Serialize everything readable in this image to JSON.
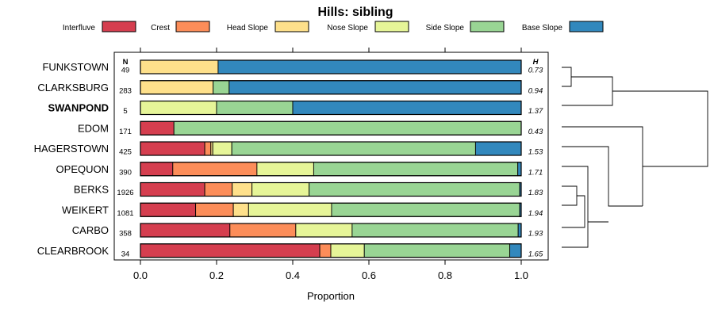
{
  "chart_data": {
    "type": "bar",
    "orientation": "horizontal",
    "stacked": true,
    "title": "Hills: sibling",
    "xlabel": "Proportion",
    "ylabel": "",
    "xlim": [
      0,
      1
    ],
    "xticks": [
      "0.0",
      "0.2",
      "0.4",
      "0.6",
      "0.8",
      "1.0"
    ],
    "xtick_values": [
      0,
      0.2,
      0.4,
      0.6,
      0.8,
      1.0
    ],
    "legend_position": "top",
    "n_header": "N",
    "h_header": "H",
    "legend": [
      {
        "name": "Interfluve",
        "color": "#d53e4f"
      },
      {
        "name": "Crest",
        "color": "#fc8d59"
      },
      {
        "name": "Head Slope",
        "color": "#fee08b"
      },
      {
        "name": "Nose Slope",
        "color": "#e6f598"
      },
      {
        "name": "Side Slope",
        "color": "#99d594"
      },
      {
        "name": "Base Slope",
        "color": "#3288bd"
      }
    ],
    "categories": [
      "FUNKSTOWN",
      "CLARKSBURG",
      "SWANPOND",
      "EDOM",
      "HAGERSTOWN",
      "OPEQUON",
      "BERKS",
      "WEIKERT",
      "CARBO",
      "CLEARBROOK"
    ],
    "highlight": "SWANPOND",
    "rows": [
      {
        "name": "FUNKSTOWN",
        "n": "49",
        "h": "0.73",
        "values": [
          0,
          0,
          0.204,
          0,
          0,
          0.796
        ]
      },
      {
        "name": "CLARKSBURG",
        "n": "283",
        "h": "0.94",
        "values": [
          0,
          0,
          0.191,
          0,
          0.042,
          0.767
        ]
      },
      {
        "name": "SWANPOND",
        "n": "5",
        "h": "1.37",
        "values": [
          0,
          0,
          0,
          0.2,
          0.2,
          0.6
        ]
      },
      {
        "name": "EDOM",
        "n": "171",
        "h": "0.43",
        "values": [
          0.088,
          0,
          0,
          0,
          0.912,
          0
        ]
      },
      {
        "name": "HAGERSTOWN",
        "n": "425",
        "h": "1.53",
        "values": [
          0.169,
          0.016,
          0.005,
          0.05,
          0.64,
          0.12
        ]
      },
      {
        "name": "OPEQUON",
        "n": "390",
        "h": "1.71",
        "values": [
          0.085,
          0.221,
          0.0,
          0.149,
          0.536,
          0.009
        ]
      },
      {
        "name": "BERKS",
        "n": "1926",
        "h": "1.83",
        "values": [
          0.169,
          0.072,
          0.052,
          0.15,
          0.553,
          0.004
        ]
      },
      {
        "name": "WEIKERT",
        "n": "1081",
        "h": "1.94",
        "values": [
          0.145,
          0.099,
          0.04,
          0.218,
          0.494,
          0.004
        ]
      },
      {
        "name": "CARBO",
        "n": "358",
        "h": "1.93",
        "values": [
          0.235,
          0.173,
          0.0,
          0.148,
          0.436,
          0.008
        ]
      },
      {
        "name": "CLEARBROOK",
        "n": "34",
        "h": "1.65",
        "values": [
          0.471,
          0.029,
          0,
          0.088,
          0.382,
          0.03
        ]
      }
    ],
    "dendrogram": {
      "note": "hierarchical clustering of series; merges listed as pairs of leaf/cluster indices with relative heights",
      "merges": [
        {
          "a": "FUNKSTOWN",
          "b": "CLARKSBURG",
          "height": 0.06
        },
        {
          "a": "BERKS",
          "b": "WEIKERT",
          "height": 0.03
        },
        {
          "a": "OPEQUON",
          "b": "BERKS+WEIKERT",
          "height": 0.09
        },
        {
          "a": "OPEQUON+BERKS+WEIKERT",
          "b": "CARBO",
          "height": 0.12
        },
        {
          "a": "HAGERSTOWN",
          "b": "OPEQUON+BERKS+WEIKERT+CARBO",
          "height": 0.18
        },
        {
          "a": "HAGERSTOWN+...",
          "b": "CLEARBROOK",
          "height": 0.29
        },
        {
          "a": "EDOM",
          "b": "HAGERSTOWN+...+CLEARBROOK",
          "height": 0.56
        },
        {
          "a": "FUNKSTOWN+CLARKSBURG",
          "b": "SWANPOND",
          "height": 0.31
        },
        {
          "a": "FUNKSTOWN+CLARKSBURG+SWANPOND",
          "b": "EDOM+...",
          "height": 1.0
        }
      ]
    }
  }
}
